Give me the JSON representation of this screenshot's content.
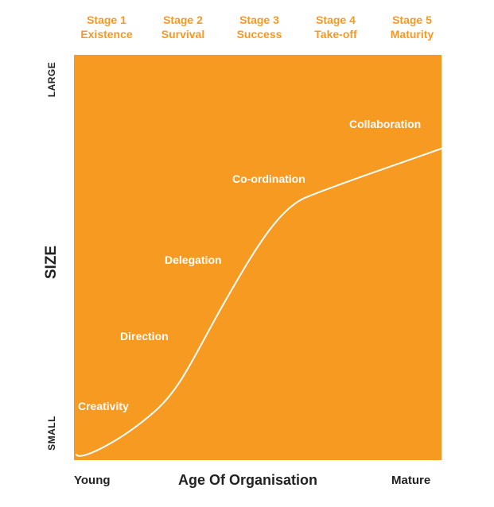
{
  "stages": [
    {
      "number": "Stage 1",
      "name": "Existence"
    },
    {
      "number": "Stage 2",
      "name": "Survival"
    },
    {
      "number": "Stage 3",
      "name": "Success"
    },
    {
      "number": "Stage 4",
      "name": "Take-off"
    },
    {
      "number": "Stage 5",
      "name": "Maturity"
    }
  ],
  "phases": {
    "creativity": "Creativity",
    "direction": "Direction",
    "delegation": "Delegation",
    "coordination": "Co-ordination",
    "collaboration": "Collaboration"
  },
  "y_axis": {
    "top_label": "LARGE",
    "title": "SIZE",
    "bottom_label": "SMALL"
  },
  "x_axis": {
    "left_label": "Young",
    "title": "Age Of Organisation",
    "right_label": "Mature"
  },
  "colors": {
    "panel": "#F69A22",
    "stage_text": "#F39A26",
    "curve": "#ffffff",
    "axis_text": "#222222"
  }
}
